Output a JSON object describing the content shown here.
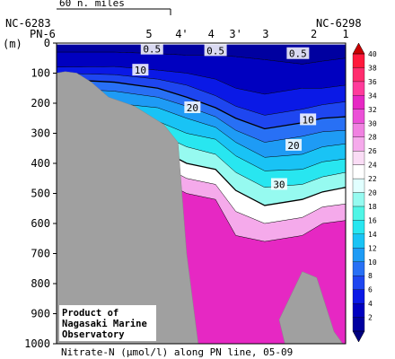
{
  "chart_data": {
    "type": "contour-section",
    "title": "Nitrate-N (μmol/l) along PN line, 05-09",
    "credit": [
      "Product of",
      "Nagasaki Marine",
      "Observatory"
    ],
    "scale_label": "60 n. miles",
    "ship_codes": {
      "left": "NC-6283",
      "right": "NC-6298"
    },
    "line_label": "PN-6",
    "ylabel": "(m)",
    "ylim": [
      0,
      1000
    ],
    "yticks": [
      0,
      100,
      200,
      300,
      400,
      500,
      600,
      700,
      800,
      900,
      1000
    ],
    "stations": [
      {
        "label": "5",
        "km": 0.32
      },
      {
        "label": "4'",
        "km": 0.433
      },
      {
        "label": "4",
        "km": 0.535
      },
      {
        "label": "3'",
        "km": 0.62
      },
      {
        "label": "3",
        "km": 0.723
      },
      {
        "label": "2",
        "km": 0.89
      },
      {
        "label": "1",
        "km": 1.0
      }
    ],
    "contour_labels": [
      {
        "text": "0.5",
        "xf": 0.33,
        "depth": 20
      },
      {
        "text": "0.5",
        "xf": 0.55,
        "depth": 25
      },
      {
        "text": "0.5",
        "xf": 0.835,
        "depth": 35
      },
      {
        "text": "10",
        "xf": 0.29,
        "depth": 90
      },
      {
        "text": "20",
        "xf": 0.47,
        "depth": 215
      },
      {
        "text": "10",
        "xf": 0.87,
        "depth": 255
      },
      {
        "text": "20",
        "xf": 0.82,
        "depth": 340
      },
      {
        "text": "30",
        "xf": 0.77,
        "depth": 470
      }
    ],
    "colorbar": {
      "min": 2,
      "max": 40,
      "step": 2,
      "labels": [
        2,
        4,
        6,
        8,
        10,
        12,
        14,
        16,
        18,
        20,
        22,
        24,
        26,
        28,
        30,
        32,
        34,
        36,
        38,
        40
      ],
      "colors": [
        "#0000a0",
        "#0000c0",
        "#0a19e6",
        "#1e46f0",
        "#2870f5",
        "#1e9bf5",
        "#19c3f5",
        "#28e6f0",
        "#50f5e6",
        "#96faf0",
        "#e1ffff",
        "#ffffff",
        "#fadcf5",
        "#f5aaeb",
        "#f082e1",
        "#eb50d7",
        "#e628c3",
        "#ff3c9b",
        "#ff2d6e",
        "#ff193c"
      ]
    },
    "bottom_profile": [
      [
        0,
        100
      ],
      [
        0.03,
        95
      ],
      [
        0.07,
        100
      ],
      [
        0.12,
        130
      ],
      [
        0.18,
        180
      ],
      [
        0.27,
        210
      ],
      [
        0.37,
        270
      ],
      [
        0.42,
        330
      ],
      [
        0.45,
        700
      ],
      [
        0.49,
        1000
      ]
    ],
    "deep_profile": [
      [
        0.79,
        1000
      ],
      [
        0.77,
        920
      ],
      [
        0.8,
        860
      ],
      [
        0.85,
        760
      ],
      [
        0.9,
        780
      ],
      [
        0.96,
        960
      ],
      [
        0.99,
        1000
      ]
    ]
  }
}
